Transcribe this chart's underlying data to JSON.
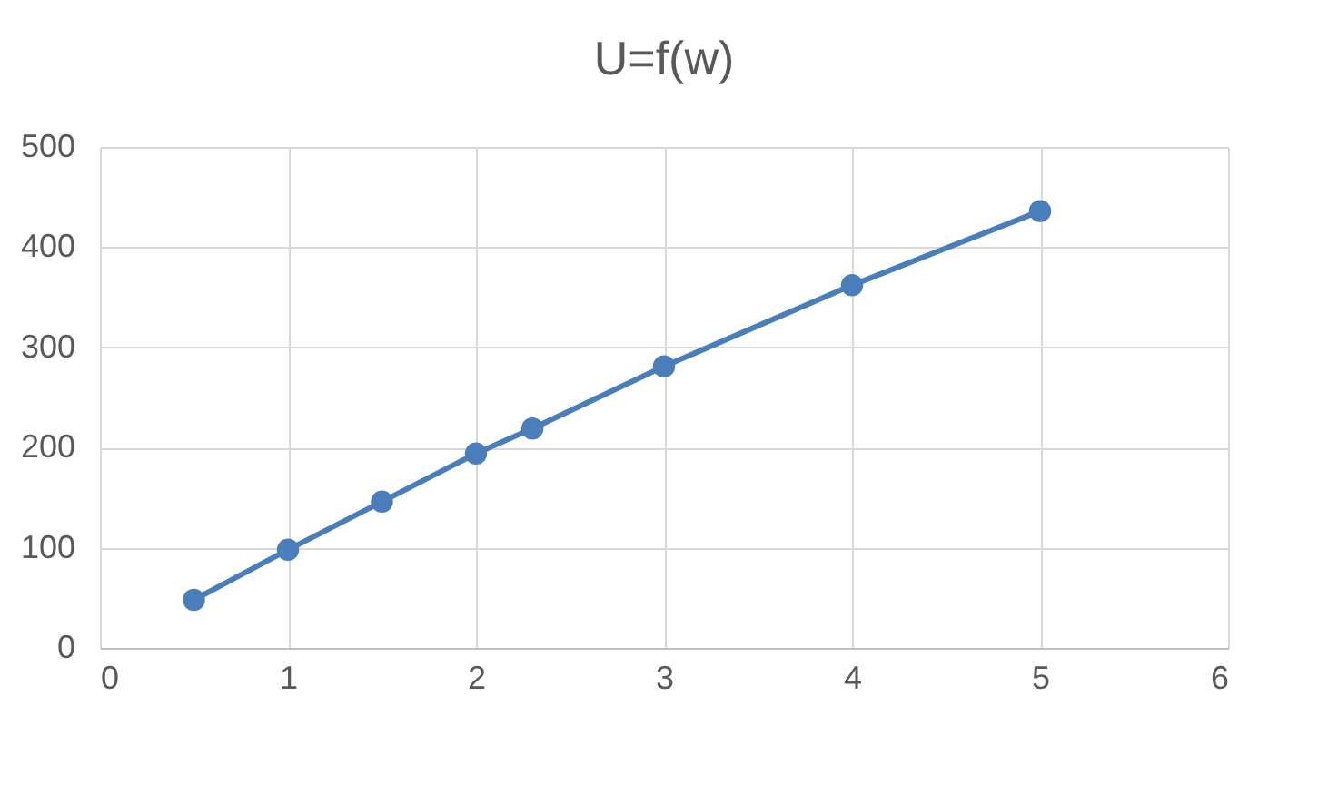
{
  "chart_data": {
    "type": "line",
    "title": "U=f(w)",
    "x": [
      0.5,
      1,
      1.5,
      2,
      2.3,
      3,
      4,
      5
    ],
    "series": [
      {
        "color": "#4a7ebb",
        "values": [
          48,
          98,
          146,
          194,
          219,
          281,
          362,
          436
        ]
      }
    ],
    "xlim": [
      0,
      6
    ],
    "xticks": [
      0,
      1,
      2,
      3,
      4,
      5,
      6
    ],
    "ylim": [
      0,
      500
    ],
    "yticks": [
      0,
      100,
      200,
      300,
      400,
      500
    ],
    "grid": true,
    "marker": "circle",
    "line_style": "solid"
  }
}
